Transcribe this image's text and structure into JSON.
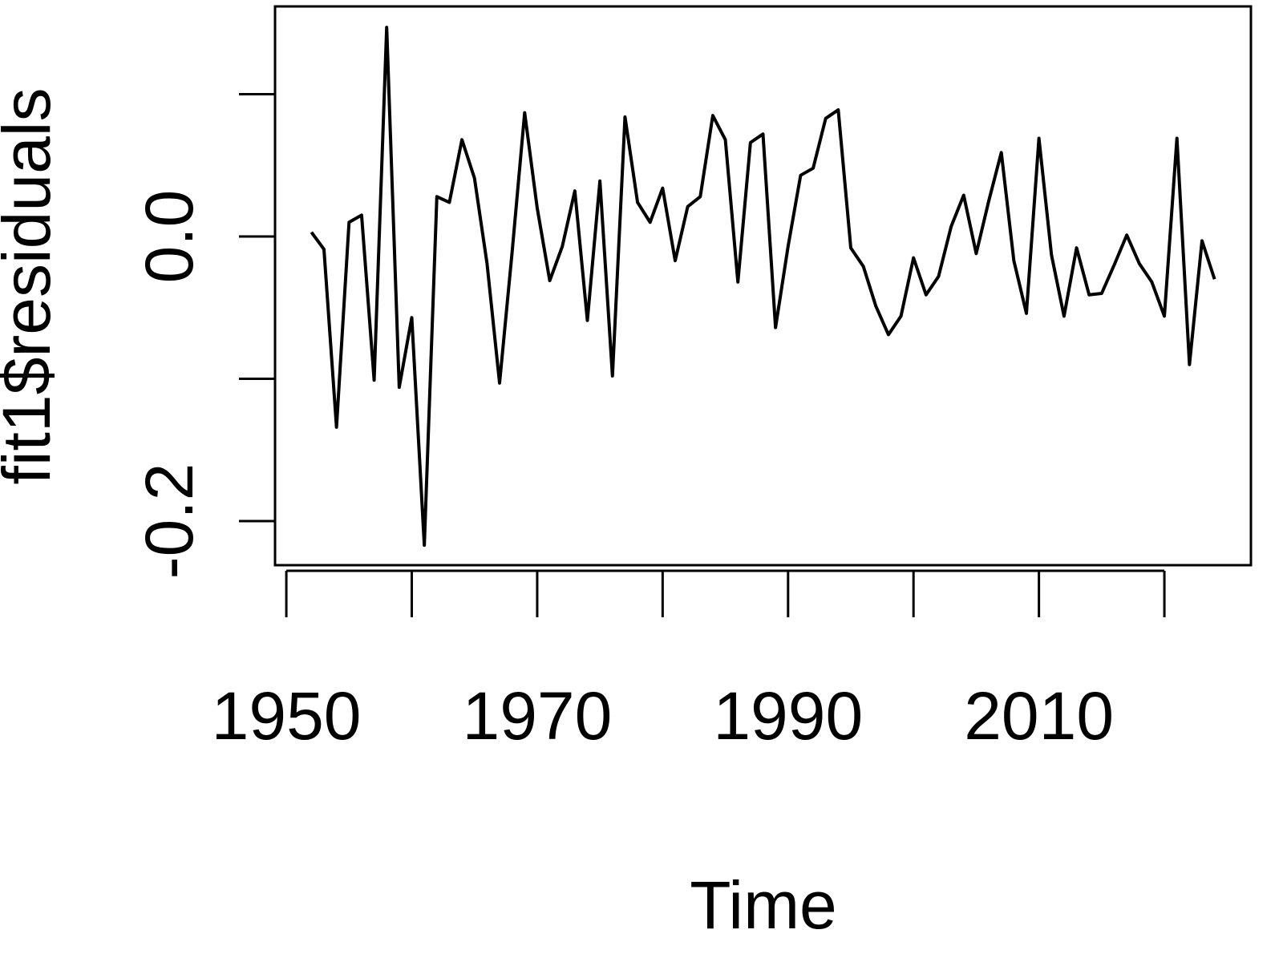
{
  "chart_data": {
    "type": "line",
    "x_label": "Time",
    "y_label": "fit1$residuals",
    "x": [
      1952,
      1953,
      1954,
      1955,
      1956,
      1957,
      1958,
      1959,
      1960,
      1961,
      1962,
      1963,
      1964,
      1965,
      1966,
      1967,
      1968,
      1969,
      1970,
      1971,
      1972,
      1973,
      1974,
      1975,
      1976,
      1977,
      1978,
      1979,
      1980,
      1981,
      1982,
      1983,
      1984,
      1985,
      1986,
      1987,
      1988,
      1989,
      1990,
      1991,
      1992,
      1993,
      1994,
      1995,
      1996,
      1997,
      1998,
      1999,
      2000,
      2001,
      2002,
      2003,
      2004,
      2005,
      2006,
      2007,
      2008,
      2009,
      2010,
      2011,
      2012,
      2013,
      2014,
      2015,
      2016,
      2017,
      2018,
      2019,
      2020,
      2021,
      2022,
      2023,
      2024
    ],
    "series": [
      {
        "color": "#000000",
        "values": [
          0.003,
          -0.009,
          -0.134,
          0.01,
          0.015,
          -0.101,
          0.147,
          -0.106,
          -0.057,
          -0.217,
          0.028,
          0.024,
          0.068,
          0.041,
          -0.019,
          -0.103,
          -0.011,
          0.087,
          0.02,
          -0.031,
          -0.007,
          0.032,
          -0.059,
          0.039,
          -0.098,
          0.084,
          0.024,
          0.01,
          0.034,
          -0.017,
          0.021,
          0.028,
          0.085,
          0.068,
          -0.032,
          0.066,
          0.072,
          -0.064,
          -0.007,
          0.043,
          0.048,
          0.083,
          0.089,
          -0.008,
          -0.021,
          -0.049,
          -0.069,
          -0.056,
          -0.015,
          -0.041,
          -0.028,
          0.007,
          0.029,
          -0.012,
          0.025,
          0.059,
          -0.017,
          -0.054,
          0.069,
          -0.013,
          -0.056,
          -0.008,
          -0.041,
          -0.04,
          -0.02,
          0.001,
          -0.019,
          -0.032,
          -0.056,
          0.069,
          -0.09,
          -0.003,
          -0.03
        ]
      }
    ],
    "xlim": [
      1949.1,
      2026.9
    ],
    "ylim": [
      -0.231,
      0.1617
    ],
    "xticks": [
      1950,
      1970,
      1990,
      2010
    ],
    "xticks_unlabeled": [
      1960,
      1980,
      2000,
      2020
    ],
    "yticks": [
      -0.2,
      {
        "value": 0,
        "label": "0.0"
      }
    ],
    "yticks_unlabeled": [
      -0.1,
      0.1
    ]
  }
}
